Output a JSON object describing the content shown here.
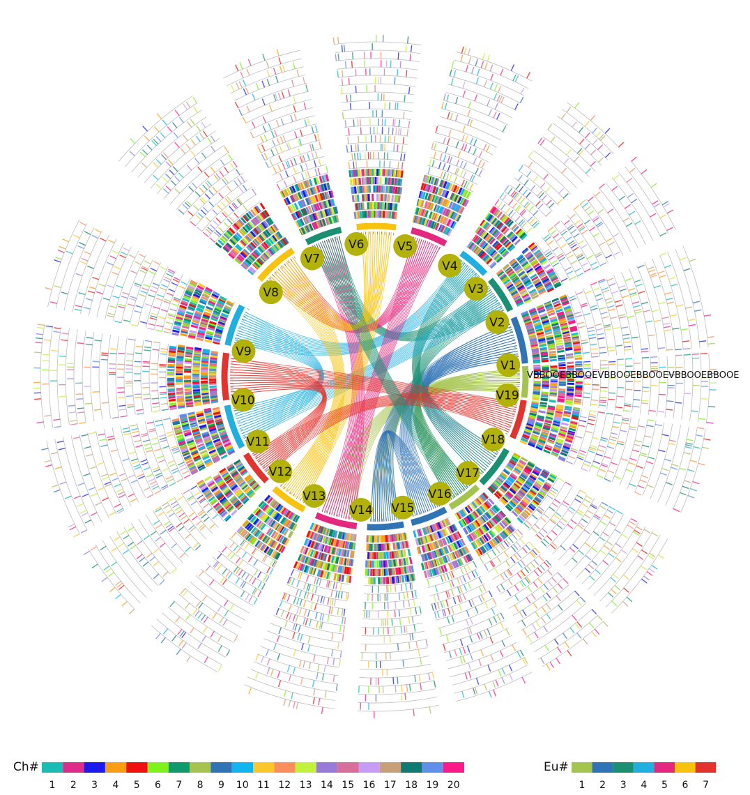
{
  "chromosomes": [
    {
      "label": "V1",
      "color": "#a5c44f"
    },
    {
      "label": "V2",
      "color": "#2f74b5"
    },
    {
      "label": "V3",
      "color": "#1a8f72"
    },
    {
      "label": "V4",
      "color": "#1fb0e0"
    },
    {
      "label": "V5",
      "color": "#e5287f"
    },
    {
      "label": "V6",
      "color": "#f7c30f"
    },
    {
      "label": "V7",
      "color": "#1a8f72"
    },
    {
      "label": "V8",
      "color": "#f7c30f"
    },
    {
      "label": "V9",
      "color": "#1fb0e0"
    },
    {
      "label": "V10",
      "color": "#e2332e"
    },
    {
      "label": "V11",
      "color": "#1fb0e0"
    },
    {
      "label": "V12",
      "color": "#e2332e"
    },
    {
      "label": "V13",
      "color": "#f7c30f"
    },
    {
      "label": "V14",
      "color": "#e5287f"
    },
    {
      "label": "V15",
      "color": "#2f74b5"
    },
    {
      "label": "V16",
      "color": "#2f74b5"
    },
    {
      "label": "V17",
      "color": "#a5c44f"
    },
    {
      "label": "V18",
      "color": "#1a8f72"
    },
    {
      "label": "V19",
      "color": "#e2332e"
    }
  ],
  "track_labels": "VBBOOEBBOOEVBBOOEBBOOEVBBOOEBBOOE",
  "links": [
    {
      "from": "V1",
      "to": "V15",
      "eu": 1
    },
    {
      "from": "V1",
      "to": "V17",
      "eu": 1
    },
    {
      "from": "V1",
      "to": "V14",
      "eu": 1
    },
    {
      "from": "V2",
      "to": "V16",
      "eu": 2
    },
    {
      "from": "V2",
      "to": "V15",
      "eu": 2
    },
    {
      "from": "V2",
      "to": "V18",
      "eu": 2
    },
    {
      "from": "V3",
      "to": "V17",
      "eu": 3
    },
    {
      "from": "V3",
      "to": "V7",
      "eu": 3
    },
    {
      "from": "V4",
      "to": "V18",
      "eu": 3
    },
    {
      "from": "V4",
      "to": "V9",
      "eu": 4
    },
    {
      "from": "V3",
      "to": "V11",
      "eu": 4
    },
    {
      "from": "V9",
      "to": "V11",
      "eu": 4
    },
    {
      "from": "V5",
      "to": "V14",
      "eu": 5
    },
    {
      "from": "V5",
      "to": "V8",
      "eu": 5
    },
    {
      "from": "V7",
      "to": "V14",
      "eu": 5
    },
    {
      "from": "V6",
      "to": "V13",
      "eu": 6
    },
    {
      "from": "V8",
      "to": "V13",
      "eu": 6
    },
    {
      "from": "V6",
      "to": "V8",
      "eu": 6
    },
    {
      "from": "V10",
      "to": "V19",
      "eu": 7
    },
    {
      "from": "V12",
      "to": "V19",
      "eu": 7
    },
    {
      "from": "V10",
      "to": "V12",
      "eu": 7
    },
    {
      "from": "V7",
      "to": "V17",
      "eu": 3
    },
    {
      "from": "V16",
      "to": "V15",
      "eu": 2
    }
  ],
  "legend_ch": {
    "title": "Ch#",
    "items": [
      {
        "label": "1",
        "color": "#1bbcb5"
      },
      {
        "label": "2",
        "color": "#de2c8a"
      },
      {
        "label": "3",
        "color": "#1b1bf0"
      },
      {
        "label": "4",
        "color": "#f99e14"
      },
      {
        "label": "5",
        "color": "#f01010"
      },
      {
        "label": "6",
        "color": "#7ff21c"
      },
      {
        "label": "7",
        "color": "#0f9a6e"
      },
      {
        "label": "8",
        "color": "#a5c44f"
      },
      {
        "label": "9",
        "color": "#2f74b5"
      },
      {
        "label": "10",
        "color": "#12b5ef"
      },
      {
        "label": "11",
        "color": "#fbc72c"
      },
      {
        "label": "12",
        "color": "#fa8e5c"
      },
      {
        "label": "13",
        "color": "#c2f23c"
      },
      {
        "label": "14",
        "color": "#9a7ad8"
      },
      {
        "label": "15",
        "color": "#d86f9a"
      },
      {
        "label": "16",
        "color": "#c79cf5"
      },
      {
        "label": "17",
        "color": "#c7a07a"
      },
      {
        "label": "18",
        "color": "#0f7a72"
      },
      {
        "label": "19",
        "color": "#5f8fe8"
      },
      {
        "label": "20",
        "color": "#fa1a8a"
      }
    ]
  },
  "legend_eu": {
    "title": "Eu#",
    "items": [
      {
        "label": "1",
        "color": "#a5c44f"
      },
      {
        "label": "2",
        "color": "#2f74b5"
      },
      {
        "label": "3",
        "color": "#1a8f72"
      },
      {
        "label": "4",
        "color": "#1fb0e0"
      },
      {
        "label": "5",
        "color": "#e5287f"
      },
      {
        "label": "6",
        "color": "#f7c30f"
      },
      {
        "label": "7",
        "color": "#e2332e"
      }
    ]
  }
}
